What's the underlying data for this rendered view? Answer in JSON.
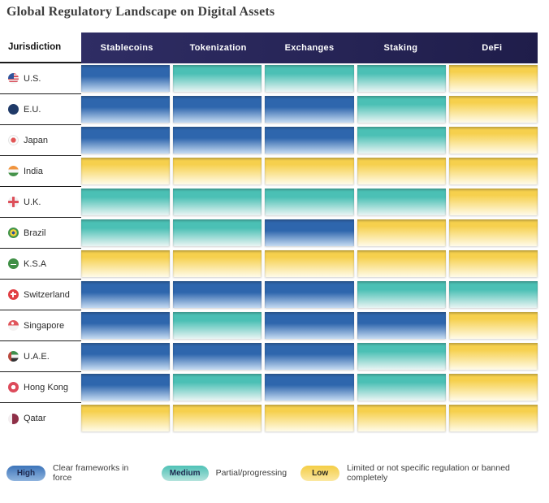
{
  "title": "Global Regulatory Landscape on Digital Assets",
  "table": {
    "jurisdiction_header": "Jurisdiction",
    "columns": [
      "Stablecoins",
      "Tokenization",
      "Exchanges",
      "Staking",
      "DeFi"
    ],
    "rows": [
      {
        "name": "U.S.",
        "flag": "us",
        "ratings": [
          "high",
          "medium",
          "medium",
          "medium",
          "low"
        ]
      },
      {
        "name": "E.U.",
        "flag": "eu",
        "ratings": [
          "high",
          "high",
          "high",
          "medium",
          "low"
        ]
      },
      {
        "name": "Japan",
        "flag": "japan",
        "ratings": [
          "high",
          "high",
          "high",
          "medium",
          "low"
        ]
      },
      {
        "name": "India",
        "flag": "india",
        "ratings": [
          "low",
          "low",
          "low",
          "low",
          "low"
        ]
      },
      {
        "name": "U.K.",
        "flag": "uk",
        "ratings": [
          "medium",
          "medium",
          "medium",
          "medium",
          "low"
        ]
      },
      {
        "name": "Brazil",
        "flag": "brazil",
        "ratings": [
          "medium",
          "medium",
          "high",
          "low",
          "low"
        ]
      },
      {
        "name": "K.S.A",
        "flag": "ksa",
        "ratings": [
          "low",
          "low",
          "low",
          "low",
          "low"
        ]
      },
      {
        "name": "Switzerland",
        "flag": "switzerland",
        "ratings": [
          "high",
          "high",
          "high",
          "medium",
          "medium"
        ]
      },
      {
        "name": "Singapore",
        "flag": "singapore",
        "ratings": [
          "high",
          "medium",
          "high",
          "high",
          "low"
        ]
      },
      {
        "name": "U.A.E.",
        "flag": "uae",
        "ratings": [
          "high",
          "high",
          "high",
          "medium",
          "low"
        ]
      },
      {
        "name": "Hong Kong",
        "flag": "hongkong",
        "ratings": [
          "high",
          "medium",
          "high",
          "medium",
          "low"
        ]
      },
      {
        "name": "Qatar",
        "flag": "qatar",
        "ratings": [
          "low",
          "low",
          "low",
          "low",
          "low"
        ]
      }
    ]
  },
  "legend": [
    {
      "label": "High",
      "level": "high",
      "description": "Clear frameworks in force"
    },
    {
      "label": "Medium",
      "level": "medium",
      "description": "Partial/progressing"
    },
    {
      "label": "Low",
      "level": "low",
      "description": "Limited or not specific regulation or banned completely"
    }
  ],
  "colors": {
    "header_bg_left": "#2f2d64",
    "header_bg_right": "#1f1d4a",
    "high_top": "#2e66ad",
    "high_bottom": "#c6dbf2",
    "medium_top": "#4bc0b5",
    "medium_bottom": "#eaf5f4",
    "low_top": "#f6d04d",
    "low_bottom": "#fffbe9"
  },
  "chart_data": {
    "type": "heatmap",
    "title": "Global Regulatory Landscape on Digital Assets",
    "x_categories": [
      "Stablecoins",
      "Tokenization",
      "Exchanges",
      "Staking",
      "DeFi"
    ],
    "y_categories": [
      "U.S.",
      "E.U.",
      "Japan",
      "India",
      "U.K.",
      "Brazil",
      "K.S.A",
      "Switzerland",
      "Singapore",
      "U.A.E.",
      "Hong Kong",
      "Qatar"
    ],
    "values": [
      [
        "high",
        "medium",
        "medium",
        "medium",
        "low"
      ],
      [
        "high",
        "high",
        "high",
        "medium",
        "low"
      ],
      [
        "high",
        "high",
        "high",
        "medium",
        "low"
      ],
      [
        "low",
        "low",
        "low",
        "low",
        "low"
      ],
      [
        "medium",
        "medium",
        "medium",
        "medium",
        "low"
      ],
      [
        "medium",
        "medium",
        "high",
        "low",
        "low"
      ],
      [
        "low",
        "low",
        "low",
        "low",
        "low"
      ],
      [
        "high",
        "high",
        "high",
        "medium",
        "medium"
      ],
      [
        "high",
        "medium",
        "high",
        "high",
        "low"
      ],
      [
        "high",
        "high",
        "high",
        "medium",
        "low"
      ],
      [
        "high",
        "medium",
        "high",
        "medium",
        "low"
      ],
      [
        "low",
        "low",
        "low",
        "low",
        "low"
      ]
    ],
    "value_scale": {
      "high": "Clear frameworks in force",
      "medium": "Partial/progressing",
      "low": "Limited or not specific regulation or banned completely"
    },
    "legend_position": "bottom"
  }
}
